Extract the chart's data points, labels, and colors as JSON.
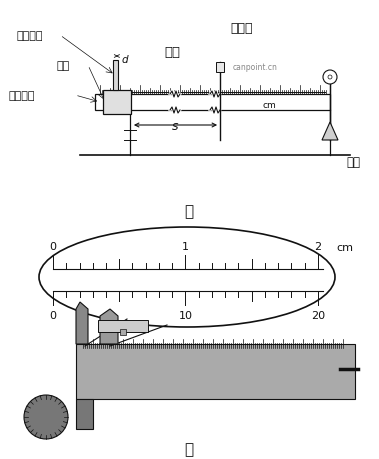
{
  "bg_color": "#ffffff",
  "top_label_jia": "甲",
  "bottom_label_yi": "乙",
  "labels": {
    "dang_guang": "挡光窄片",
    "d_label": "d",
    "xi_xian": "细线",
    "guang_dian_men": "光电门",
    "hua_kuai": "滑块",
    "qi_dian": "气垫导轨",
    "s_label": "s",
    "cm_label": "cm",
    "bei_ma": "砝码",
    "canpoint": "canpoint.cn"
  },
  "scale_top_labels": [
    "0",
    "1",
    "2",
    "cm"
  ],
  "scale_bottom_labels": [
    "0",
    "10",
    "20"
  ],
  "figure_width": 3.79,
  "figure_height": 4.6,
  "dpi": 100
}
